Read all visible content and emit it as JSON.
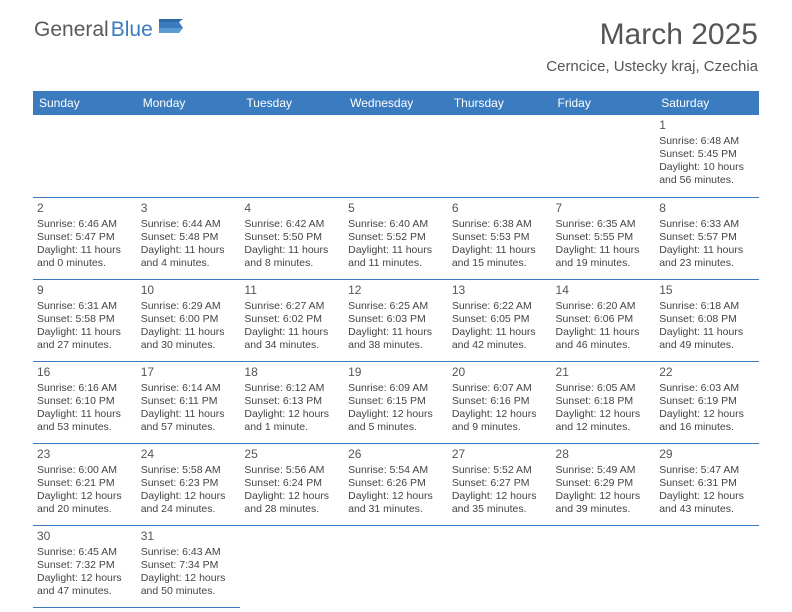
{
  "logo": {
    "text1": "General",
    "text2": "Blue"
  },
  "title": "March 2025",
  "location": "Cerncice, Ustecky kraj, Czechia",
  "colors": {
    "header_bg": "#3b7bbf",
    "header_text": "#ffffff",
    "border": "#3b7bbf",
    "body_text": "#444444",
    "title_text": "#555555",
    "background": "#ffffff"
  },
  "weekdays": [
    "Sunday",
    "Monday",
    "Tuesday",
    "Wednesday",
    "Thursday",
    "Friday",
    "Saturday"
  ],
  "weeks": [
    [
      {
        "blank": true
      },
      {
        "blank": true
      },
      {
        "blank": true
      },
      {
        "blank": true
      },
      {
        "blank": true
      },
      {
        "blank": true
      },
      {
        "day": "1",
        "sunrise": "Sunrise: 6:48 AM",
        "sunset": "Sunset: 5:45 PM",
        "daylight": "Daylight: 10 hours and 56 minutes."
      }
    ],
    [
      {
        "day": "2",
        "sunrise": "Sunrise: 6:46 AM",
        "sunset": "Sunset: 5:47 PM",
        "daylight": "Daylight: 11 hours and 0 minutes."
      },
      {
        "day": "3",
        "sunrise": "Sunrise: 6:44 AM",
        "sunset": "Sunset: 5:48 PM",
        "daylight": "Daylight: 11 hours and 4 minutes."
      },
      {
        "day": "4",
        "sunrise": "Sunrise: 6:42 AM",
        "sunset": "Sunset: 5:50 PM",
        "daylight": "Daylight: 11 hours and 8 minutes."
      },
      {
        "day": "5",
        "sunrise": "Sunrise: 6:40 AM",
        "sunset": "Sunset: 5:52 PM",
        "daylight": "Daylight: 11 hours and 11 minutes."
      },
      {
        "day": "6",
        "sunrise": "Sunrise: 6:38 AM",
        "sunset": "Sunset: 5:53 PM",
        "daylight": "Daylight: 11 hours and 15 minutes."
      },
      {
        "day": "7",
        "sunrise": "Sunrise: 6:35 AM",
        "sunset": "Sunset: 5:55 PM",
        "daylight": "Daylight: 11 hours and 19 minutes."
      },
      {
        "day": "8",
        "sunrise": "Sunrise: 6:33 AM",
        "sunset": "Sunset: 5:57 PM",
        "daylight": "Daylight: 11 hours and 23 minutes."
      }
    ],
    [
      {
        "day": "9",
        "sunrise": "Sunrise: 6:31 AM",
        "sunset": "Sunset: 5:58 PM",
        "daylight": "Daylight: 11 hours and 27 minutes."
      },
      {
        "day": "10",
        "sunrise": "Sunrise: 6:29 AM",
        "sunset": "Sunset: 6:00 PM",
        "daylight": "Daylight: 11 hours and 30 minutes."
      },
      {
        "day": "11",
        "sunrise": "Sunrise: 6:27 AM",
        "sunset": "Sunset: 6:02 PM",
        "daylight": "Daylight: 11 hours and 34 minutes."
      },
      {
        "day": "12",
        "sunrise": "Sunrise: 6:25 AM",
        "sunset": "Sunset: 6:03 PM",
        "daylight": "Daylight: 11 hours and 38 minutes."
      },
      {
        "day": "13",
        "sunrise": "Sunrise: 6:22 AM",
        "sunset": "Sunset: 6:05 PM",
        "daylight": "Daylight: 11 hours and 42 minutes."
      },
      {
        "day": "14",
        "sunrise": "Sunrise: 6:20 AM",
        "sunset": "Sunset: 6:06 PM",
        "daylight": "Daylight: 11 hours and 46 minutes."
      },
      {
        "day": "15",
        "sunrise": "Sunrise: 6:18 AM",
        "sunset": "Sunset: 6:08 PM",
        "daylight": "Daylight: 11 hours and 49 minutes."
      }
    ],
    [
      {
        "day": "16",
        "sunrise": "Sunrise: 6:16 AM",
        "sunset": "Sunset: 6:10 PM",
        "daylight": "Daylight: 11 hours and 53 minutes."
      },
      {
        "day": "17",
        "sunrise": "Sunrise: 6:14 AM",
        "sunset": "Sunset: 6:11 PM",
        "daylight": "Daylight: 11 hours and 57 minutes."
      },
      {
        "day": "18",
        "sunrise": "Sunrise: 6:12 AM",
        "sunset": "Sunset: 6:13 PM",
        "daylight": "Daylight: 12 hours and 1 minute."
      },
      {
        "day": "19",
        "sunrise": "Sunrise: 6:09 AM",
        "sunset": "Sunset: 6:15 PM",
        "daylight": "Daylight: 12 hours and 5 minutes."
      },
      {
        "day": "20",
        "sunrise": "Sunrise: 6:07 AM",
        "sunset": "Sunset: 6:16 PM",
        "daylight": "Daylight: 12 hours and 9 minutes."
      },
      {
        "day": "21",
        "sunrise": "Sunrise: 6:05 AM",
        "sunset": "Sunset: 6:18 PM",
        "daylight": "Daylight: 12 hours and 12 minutes."
      },
      {
        "day": "22",
        "sunrise": "Sunrise: 6:03 AM",
        "sunset": "Sunset: 6:19 PM",
        "daylight": "Daylight: 12 hours and 16 minutes."
      }
    ],
    [
      {
        "day": "23",
        "sunrise": "Sunrise: 6:00 AM",
        "sunset": "Sunset: 6:21 PM",
        "daylight": "Daylight: 12 hours and 20 minutes."
      },
      {
        "day": "24",
        "sunrise": "Sunrise: 5:58 AM",
        "sunset": "Sunset: 6:23 PM",
        "daylight": "Daylight: 12 hours and 24 minutes."
      },
      {
        "day": "25",
        "sunrise": "Sunrise: 5:56 AM",
        "sunset": "Sunset: 6:24 PM",
        "daylight": "Daylight: 12 hours and 28 minutes."
      },
      {
        "day": "26",
        "sunrise": "Sunrise: 5:54 AM",
        "sunset": "Sunset: 6:26 PM",
        "daylight": "Daylight: 12 hours and 31 minutes."
      },
      {
        "day": "27",
        "sunrise": "Sunrise: 5:52 AM",
        "sunset": "Sunset: 6:27 PM",
        "daylight": "Daylight: 12 hours and 35 minutes."
      },
      {
        "day": "28",
        "sunrise": "Sunrise: 5:49 AM",
        "sunset": "Sunset: 6:29 PM",
        "daylight": "Daylight: 12 hours and 39 minutes."
      },
      {
        "day": "29",
        "sunrise": "Sunrise: 5:47 AM",
        "sunset": "Sunset: 6:31 PM",
        "daylight": "Daylight: 12 hours and 43 minutes."
      }
    ],
    [
      {
        "day": "30",
        "sunrise": "Sunrise: 6:45 AM",
        "sunset": "Sunset: 7:32 PM",
        "daylight": "Daylight: 12 hours and 47 minutes."
      },
      {
        "day": "31",
        "sunrise": "Sunrise: 6:43 AM",
        "sunset": "Sunset: 7:34 PM",
        "daylight": "Daylight: 12 hours and 50 minutes."
      },
      {
        "blank": true,
        "noborder": true
      },
      {
        "blank": true,
        "noborder": true
      },
      {
        "blank": true,
        "noborder": true
      },
      {
        "blank": true,
        "noborder": true
      },
      {
        "blank": true,
        "noborder": true
      }
    ]
  ]
}
